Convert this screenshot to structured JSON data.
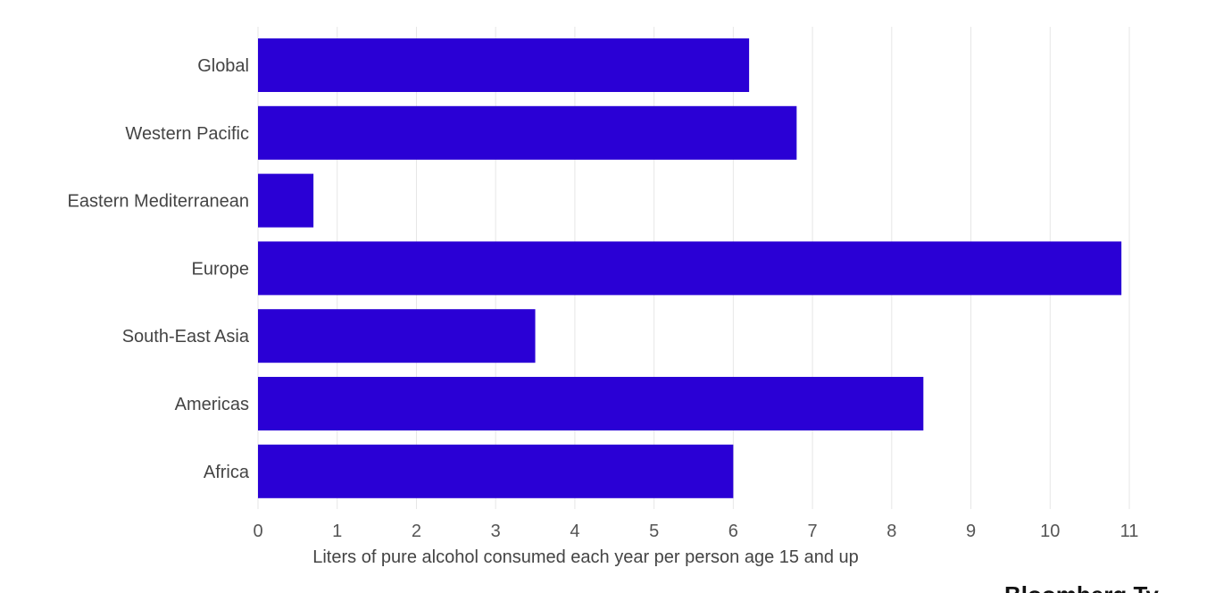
{
  "chart_data": {
    "type": "bar",
    "orientation": "horizontal",
    "categories": [
      "Global",
      "Western Pacific",
      "Eastern Mediterranean",
      "Europe",
      "South-East Asia",
      "Americas",
      "Africa"
    ],
    "values": [
      6.2,
      6.8,
      0.7,
      10.9,
      3.5,
      8.4,
      6.0
    ],
    "title": "",
    "xlabel": "Liters of pure alcohol consumed each year per person age 15 and up",
    "ylabel": "",
    "xlim": [
      0,
      11
    ],
    "xticks": [
      "0",
      "1",
      "2",
      "3",
      "4",
      "5",
      "6",
      "7",
      "8",
      "9",
      "10",
      "11"
    ],
    "grid": "vertical",
    "bar_color": "#2a00d5",
    "grid_color": "#e6e6e6"
  },
  "footer": {
    "text": "Bloomberg Ty"
  }
}
